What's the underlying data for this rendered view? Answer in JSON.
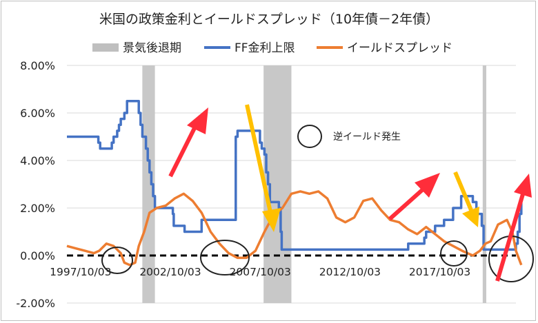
{
  "chart_data": {
    "type": "line",
    "title": "米国の政策金利とイールドスプレッド（10年債－2年債）",
    "xlabel": "",
    "ylabel": "",
    "ylim": [
      -2.0,
      8.0
    ],
    "yticks": [
      "-2.00%",
      "0.00%",
      "2.00%",
      "4.00%",
      "6.00%",
      "8.00%"
    ],
    "ytick_values": [
      -2,
      0,
      2,
      4,
      6,
      8
    ],
    "xlim": [
      1997.0,
      2022.0
    ],
    "xtick_labels": [
      "1997/10/03",
      "2002/10/03",
      "2007/10/03",
      "2012/10/03",
      "2017/10/03"
    ],
    "xtick_values": [
      1997.76,
      2002.76,
      2007.76,
      2012.76,
      2017.76
    ],
    "grid": "horizontal",
    "legend_position": "top",
    "legend": [
      {
        "label": "景気後退期",
        "kind": "bar",
        "color": "#bfbfbf"
      },
      {
        "label": "FF金利上限",
        "kind": "line",
        "color": "#4472c4"
      },
      {
        "label": "イールドスプレッド",
        "kind": "line",
        "color": "#ed7d31"
      }
    ],
    "recessions": [
      [
        2001.2,
        2001.9
      ],
      [
        2007.95,
        2009.5
      ],
      [
        2020.15,
        2020.35
      ]
    ],
    "series": [
      {
        "name": "FF金利上限",
        "color": "#4472c4",
        "x": [
          1997.0,
          1998.7,
          1998.75,
          1998.85,
          1998.95,
          1999.5,
          1999.6,
          1999.8,
          1999.9,
          2000.0,
          2000.2,
          2000.35,
          2000.45,
          2001.0,
          2001.1,
          2001.2,
          2001.4,
          2001.5,
          2001.6,
          2001.7,
          2001.8,
          2001.9,
          2002.9,
          2002.95,
          2003.5,
          2003.55,
          2004.4,
          2004.5,
          2006.4,
          2006.5,
          2007.6,
          2007.75,
          2007.85,
          2008.0,
          2008.1,
          2008.2,
          2008.3,
          2008.8,
          2008.9,
          2008.96,
          2015.9,
          2016.0,
          2016.9,
          2017.0,
          2017.5,
          2018.0,
          2018.5,
          2018.95,
          2019.5,
          2019.6,
          2019.8,
          2020.1,
          2020.2,
          2021.9,
          2022.0,
          2022.1,
          2022.2,
          2022.3
        ],
        "values": [
          5.0,
          5.0,
          4.75,
          4.5,
          4.5,
          4.75,
          5.0,
          5.25,
          5.5,
          5.75,
          6.0,
          6.5,
          6.5,
          6.0,
          5.5,
          5.0,
          4.5,
          4.0,
          3.5,
          3.0,
          2.5,
          2.0,
          1.75,
          1.25,
          1.25,
          1.0,
          1.0,
          1.5,
          5.0,
          5.25,
          5.25,
          4.75,
          4.5,
          4.25,
          3.5,
          3.0,
          2.25,
          2.0,
          1.0,
          0.25,
          0.25,
          0.5,
          0.75,
          1.0,
          1.25,
          1.5,
          2.0,
          2.5,
          2.5,
          2.25,
          1.75,
          1.25,
          0.25,
          0.25,
          0.5,
          1.0,
          1.75,
          2.5
        ]
      },
      {
        "name": "イールドスプレッド",
        "color": "#ed7d31",
        "x": [
          1997.0,
          1997.5,
          1998.0,
          1998.5,
          1998.8,
          1999.2,
          1999.6,
          2000.0,
          2000.2,
          2000.5,
          2000.8,
          2001.0,
          2001.3,
          2001.6,
          2002.0,
          2002.5,
          2003.0,
          2003.5,
          2004.0,
          2004.5,
          2005.0,
          2005.5,
          2006.0,
          2006.5,
          2007.0,
          2007.5,
          2008.0,
          2008.5,
          2009.0,
          2009.5,
          2010.0,
          2010.5,
          2011.0,
          2011.5,
          2012.0,
          2012.5,
          2013.0,
          2013.5,
          2014.0,
          2014.5,
          2015.0,
          2015.5,
          2016.0,
          2016.5,
          2017.0,
          2017.5,
          2018.0,
          2018.5,
          2019.0,
          2019.3,
          2019.6,
          2020.0,
          2020.3,
          2020.6,
          2021.0,
          2021.5,
          2021.8,
          2022.0,
          2022.3
        ],
        "values": [
          0.4,
          0.3,
          0.2,
          0.1,
          0.2,
          0.5,
          0.4,
          0.1,
          -0.3,
          -0.4,
          -0.3,
          0.4,
          1.0,
          1.8,
          2.0,
          2.1,
          2.4,
          2.6,
          2.3,
          1.8,
          1.0,
          0.5,
          0.1,
          -0.1,
          -0.1,
          0.2,
          1.0,
          1.7,
          2.0,
          2.6,
          2.7,
          2.6,
          2.7,
          2.4,
          1.6,
          1.4,
          1.6,
          2.3,
          2.4,
          1.9,
          1.5,
          1.4,
          1.1,
          0.9,
          1.2,
          0.9,
          0.6,
          0.4,
          0.2,
          0.1,
          0.0,
          0.2,
          0.5,
          0.6,
          1.3,
          1.5,
          1.0,
          0.2,
          -0.4
        ]
      }
    ],
    "annotations": [
      {
        "text": "逆イールド発生",
        "kind": "circle-legend"
      }
    ]
  }
}
